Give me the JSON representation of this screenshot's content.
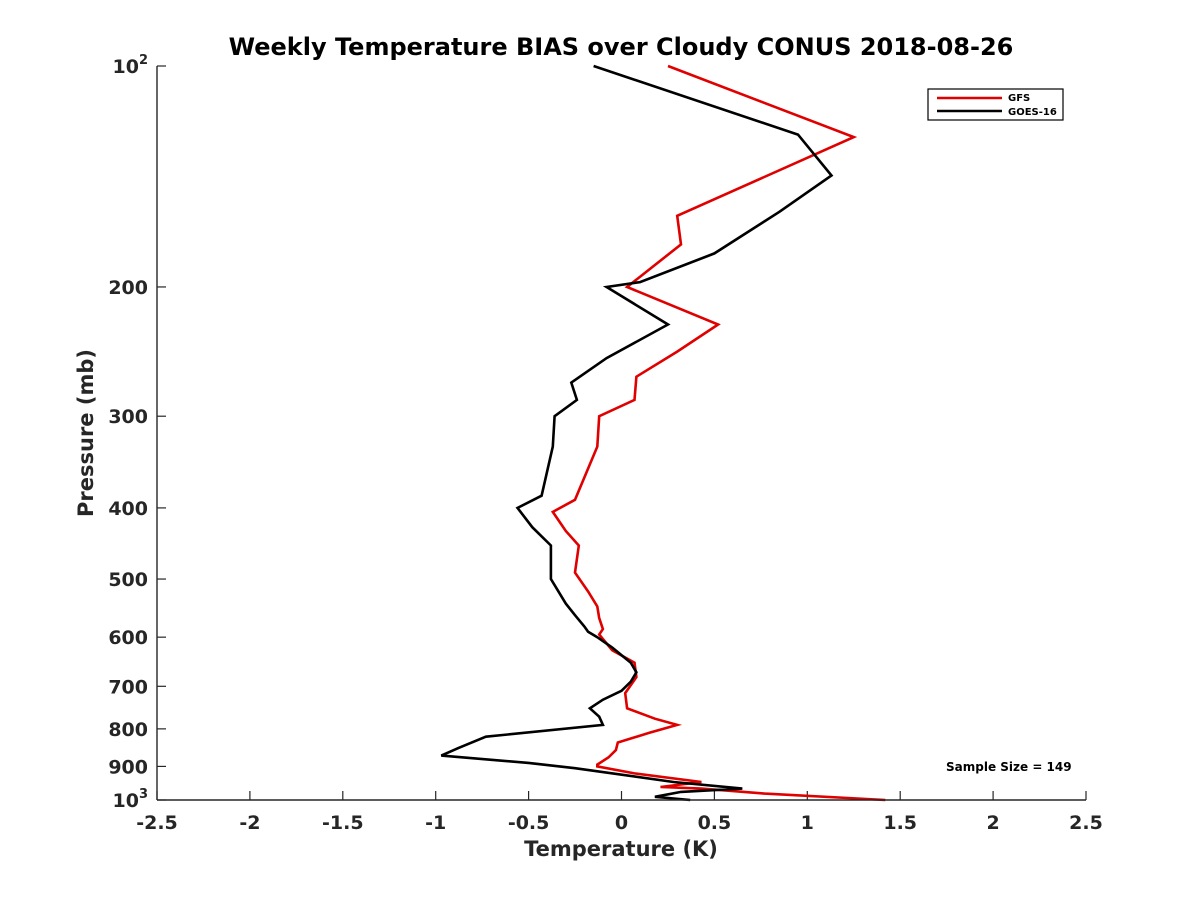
{
  "chart_data": {
    "type": "line",
    "title": "Weekly Temperature BIAS over Cloudy CONUS 2018-08-26",
    "xlabel": "Temperature (K)",
    "ylabel": "Pressure (mb)",
    "xlim": [
      -2.5,
      2.5
    ],
    "ylim": [
      100,
      1000
    ],
    "y_scale": "log",
    "y_reversed": true,
    "grid": false,
    "legend_position": "top-right",
    "x_ticks": [
      -2.5,
      -2,
      -1.5,
      -1,
      -0.5,
      0,
      0.5,
      1,
      1.5,
      2,
      2.5
    ],
    "x_tick_labels": [
      "-2.5",
      "-2",
      "-1.5",
      "-1",
      "-0.5",
      "0",
      "0.5",
      "1",
      "1.5",
      "2",
      "2.5"
    ],
    "y_ticks": [
      {
        "value": 100,
        "base": "10",
        "exp": "2"
      },
      {
        "value": 200,
        "label": "200"
      },
      {
        "value": 300,
        "label": "300"
      },
      {
        "value": 400,
        "label": "400"
      },
      {
        "value": 500,
        "label": "500"
      },
      {
        "value": 600,
        "label": "600"
      },
      {
        "value": 700,
        "label": "700"
      },
      {
        "value": 800,
        "label": "800"
      },
      {
        "value": 900,
        "label": "900"
      },
      {
        "value": 1000,
        "base": "10",
        "exp": "3"
      }
    ],
    "annotation": "Sample Size = 149",
    "series": [
      {
        "name": "GFS",
        "color": "#e00000",
        "points": [
          [
            0.25,
            100
          ],
          [
            1.25,
            125
          ],
          [
            0.3,
            160
          ],
          [
            0.32,
            175
          ],
          [
            0.03,
            200
          ],
          [
            0.52,
            225
          ],
          [
            0.3,
            245
          ],
          [
            0.08,
            265
          ],
          [
            0.07,
            285
          ],
          [
            -0.12,
            300
          ],
          [
            -0.13,
            330
          ],
          [
            -0.25,
            390
          ],
          [
            -0.37,
            405
          ],
          [
            -0.3,
            430
          ],
          [
            -0.23,
            450
          ],
          [
            -0.25,
            490
          ],
          [
            -0.18,
            520
          ],
          [
            -0.13,
            545
          ],
          [
            -0.12,
            565
          ],
          [
            -0.1,
            585
          ],
          [
            -0.12,
            595
          ],
          [
            -0.05,
            625
          ],
          [
            0.07,
            650
          ],
          [
            0.08,
            680
          ],
          [
            0.02,
            715
          ],
          [
            0.03,
            750
          ],
          [
            0.18,
            775
          ],
          [
            0.3,
            790
          ],
          [
            0.15,
            810
          ],
          [
            -0.02,
            835
          ],
          [
            -0.03,
            855
          ],
          [
            -0.07,
            875
          ],
          [
            -0.13,
            895
          ],
          [
            -0.13,
            900
          ],
          [
            0.07,
            920
          ],
          [
            0.43,
            945
          ],
          [
            0.21,
            960
          ],
          [
            0.43,
            965
          ],
          [
            0.77,
            980
          ],
          [
            1.42,
            1000
          ]
        ]
      },
      {
        "name": "GOES-16",
        "color": "#000000",
        "points": [
          [
            -0.15,
            100
          ],
          [
            0.95,
            124
          ],
          [
            1.13,
            141
          ],
          [
            0.85,
            158
          ],
          [
            0.5,
            180
          ],
          [
            0.1,
            197
          ],
          [
            -0.08,
            200
          ],
          [
            0.25,
            225
          ],
          [
            -0.08,
            250
          ],
          [
            -0.27,
            270
          ],
          [
            -0.24,
            285
          ],
          [
            -0.36,
            300
          ],
          [
            -0.37,
            330
          ],
          [
            -0.43,
            385
          ],
          [
            -0.56,
            400
          ],
          [
            -0.48,
            425
          ],
          [
            -0.38,
            450
          ],
          [
            -0.38,
            500
          ],
          [
            -0.3,
            540
          ],
          [
            -0.25,
            560
          ],
          [
            -0.2,
            580
          ],
          [
            -0.18,
            590
          ],
          [
            -0.13,
            600
          ],
          [
            -0.05,
            620
          ],
          [
            0.05,
            650
          ],
          [
            0.08,
            670
          ],
          [
            0.05,
            690
          ],
          [
            0.0,
            710
          ],
          [
            -0.1,
            730
          ],
          [
            -0.17,
            750
          ],
          [
            -0.12,
            770
          ],
          [
            -0.1,
            790
          ],
          [
            -0.73,
            820
          ],
          [
            -0.88,
            850
          ],
          [
            -0.97,
            870
          ],
          [
            -0.5,
            890
          ],
          [
            -0.25,
            905
          ],
          [
            0.28,
            945
          ],
          [
            0.65,
            965
          ],
          [
            0.32,
            975
          ],
          [
            0.18,
            990
          ],
          [
            0.37,
            1000
          ]
        ]
      }
    ]
  }
}
